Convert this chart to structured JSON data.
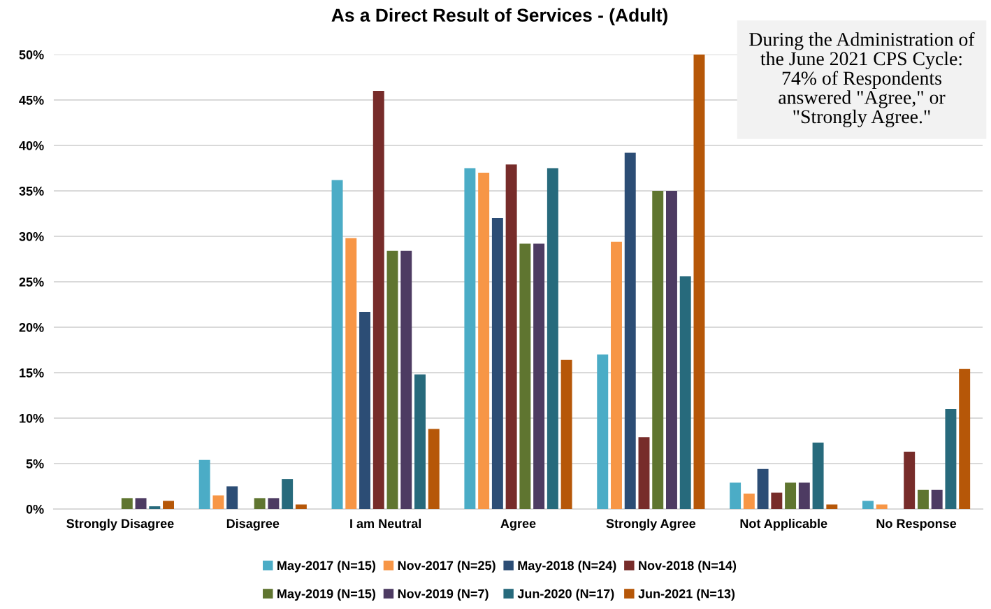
{
  "chart_data": {
    "type": "bar",
    "title": "As a Direct Result of Services - (Adult)",
    "categories": [
      "Strongly Disagree",
      "Disagree",
      "I am Neutral",
      "Agree",
      "Strongly Agree",
      "Not Applicable",
      "No Response"
    ],
    "series": [
      {
        "name": "May-2017 (N=15)",
        "color": "#4bacc6",
        "values": [
          0,
          5.4,
          36.2,
          37.5,
          17.0,
          2.9,
          0.9
        ]
      },
      {
        "name": "Nov-2017 (N=25)",
        "color": "#f79646",
        "values": [
          0,
          1.5,
          29.8,
          37.0,
          29.4,
          1.7,
          0.5
        ]
      },
      {
        "name": "May-2018 (N=24)",
        "color": "#2c4d75",
        "values": [
          0,
          2.5,
          21.7,
          32.0,
          39.2,
          4.4,
          0
        ]
      },
      {
        "name": "Nov-2018 (N=14)",
        "color": "#772c2a",
        "values": [
          0,
          0,
          46.0,
          37.9,
          7.9,
          1.8,
          6.3
        ]
      },
      {
        "name": "May-2019 (N=15)",
        "color": "#5f7530",
        "values": [
          1.2,
          1.2,
          28.4,
          29.2,
          35.0,
          2.9,
          2.1
        ]
      },
      {
        "name": "Nov-2019 (N=7)",
        "color": "#4d3b62",
        "values": [
          1.2,
          1.2,
          28.4,
          29.2,
          35.0,
          2.9,
          2.1
        ]
      },
      {
        "name": "Jun-2020 (N=17)",
        "color": "#276a7c",
        "values": [
          0.3,
          3.3,
          14.8,
          37.5,
          25.6,
          7.3,
          11.0
        ]
      },
      {
        "name": "Jun-2021 (N=13)",
        "color": "#b65708",
        "values": [
          0.9,
          0.5,
          8.8,
          16.4,
          50.0,
          0.5,
          15.4
        ]
      }
    ],
    "ylim": [
      0,
      50
    ],
    "yticks": [
      {
        "value": 0,
        "label": "0%"
      },
      {
        "value": 5,
        "label": "5%"
      },
      {
        "value": 10,
        "label": "10%"
      },
      {
        "value": 15,
        "label": "15%"
      },
      {
        "value": 20,
        "label": "20%"
      },
      {
        "value": 25,
        "label": "25%"
      },
      {
        "value": 30,
        "label": "30%"
      },
      {
        "value": 35,
        "label": "35%"
      },
      {
        "value": 40,
        "label": "40%"
      },
      {
        "value": 45,
        "label": "45%"
      },
      {
        "value": 50,
        "label": "50%"
      }
    ],
    "grid": "y",
    "legend": "bottom",
    "annotations": [
      "During the Administration of\nthe June 2021 CPS Cycle:\n74% of Respondents\nanswered \"Agree,\" or\n\"Strongly Agree.\""
    ]
  }
}
